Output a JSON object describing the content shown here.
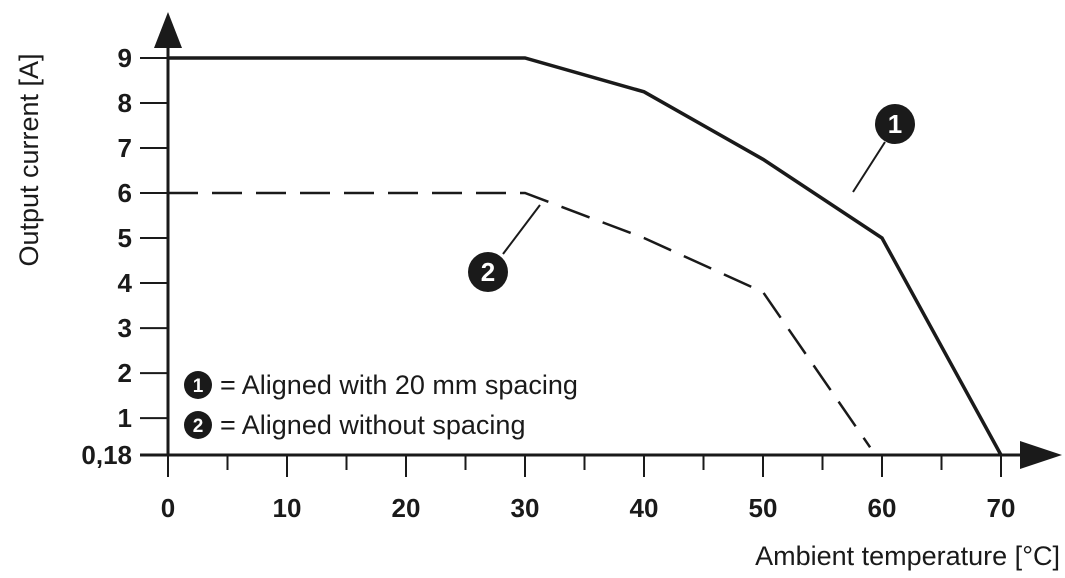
{
  "chart_data": {
    "type": "line",
    "xlabel": "Ambient temperature [°C]",
    "ylabel": "Output current [A]",
    "xlim": [
      0,
      70
    ],
    "ylim": [
      0.18,
      9
    ],
    "x_ticks": [
      0,
      10,
      20,
      30,
      40,
      50,
      60,
      70
    ],
    "x_minor_ticks": [
      5,
      15,
      25,
      35,
      45,
      55,
      65
    ],
    "y_ticks": [
      {
        "value": 0.18,
        "label": "0,18"
      },
      {
        "value": 1,
        "label": "1"
      },
      {
        "value": 2,
        "label": "2"
      },
      {
        "value": 3,
        "label": "3"
      },
      {
        "value": 4,
        "label": "4"
      },
      {
        "value": 5,
        "label": "5"
      },
      {
        "value": 6,
        "label": "6"
      },
      {
        "value": 7,
        "label": "7"
      },
      {
        "value": 8,
        "label": "8"
      },
      {
        "value": 9,
        "label": "9"
      }
    ],
    "grid": false,
    "legend_position": "bottom-left",
    "series": [
      {
        "id": "1",
        "style": "solid",
        "color": "#1a1a1a",
        "points": [
          [
            0,
            9
          ],
          [
            30,
            9
          ],
          [
            40,
            8.25
          ],
          [
            50,
            6.75
          ],
          [
            60,
            5
          ],
          [
            70,
            0.18
          ]
        ]
      },
      {
        "id": "2",
        "style": "dashed",
        "color": "#1a1a1a",
        "points": [
          [
            0,
            6
          ],
          [
            30,
            6
          ],
          [
            40,
            5
          ],
          [
            50,
            3.8
          ],
          [
            59,
            0.35
          ]
        ]
      }
    ],
    "legend": [
      {
        "marker": "1",
        "text": "= Aligned with 20 mm spacing"
      },
      {
        "marker": "2",
        "text": "= Aligned without spacing"
      }
    ],
    "callouts": [
      {
        "marker": "1",
        "series": "1"
      },
      {
        "marker": "2",
        "series": "2"
      }
    ]
  }
}
